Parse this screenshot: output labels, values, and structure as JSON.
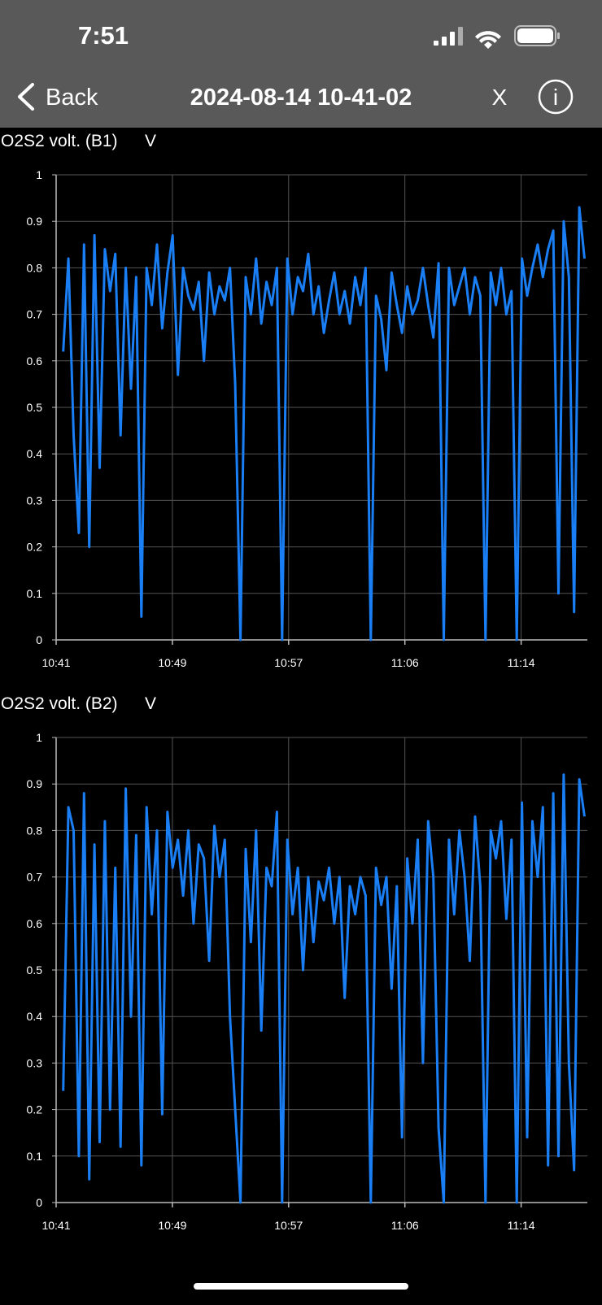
{
  "status_bar": {
    "time": "7:51"
  },
  "nav": {
    "back": "Back",
    "title": "2024-08-14 10-41-02",
    "close": "X",
    "info": "i"
  },
  "chart_data": [
    {
      "type": "line",
      "title": "O2S2 volt. (B1)",
      "unit": "V",
      "color": "#1a7ef5",
      "grid": true,
      "xlim": [
        641,
        678.7
      ],
      "ylim": [
        0,
        1
      ],
      "xticks": [
        {
          "value": 641,
          "label": "10:41"
        },
        {
          "value": 649.25,
          "label": "10:49"
        },
        {
          "value": 657.5,
          "label": "10:57"
        },
        {
          "value": 665.75,
          "label": "11:06"
        },
        {
          "value": 674,
          "label": "11:14"
        }
      ],
      "yticks": [
        0,
        0.1,
        0.2,
        0.3,
        0.4,
        0.5,
        0.6,
        0.7,
        0.8,
        0.9,
        1
      ],
      "x": [
        641.5,
        641.87,
        642.24,
        642.61,
        642.98,
        643.35,
        643.72,
        644.09,
        644.46,
        644.83,
        645.2,
        645.57,
        645.94,
        646.31,
        646.68,
        647.05,
        647.42,
        647.79,
        648.16,
        648.53,
        648.9,
        649.27,
        649.64,
        650.01,
        650.38,
        650.75,
        651.12,
        651.49,
        651.86,
        652.23,
        652.6,
        652.97,
        653.34,
        653.71,
        654.08,
        654.45,
        654.82,
        655.19,
        655.56,
        655.93,
        656.3,
        656.67,
        657.04,
        657.41,
        657.78,
        658.15,
        658.52,
        658.89,
        659.26,
        659.63,
        660,
        660.37,
        660.74,
        661.11,
        661.48,
        661.85,
        662.22,
        662.59,
        662.96,
        663.33,
        663.7,
        664.07,
        664.44,
        664.81,
        665.18,
        665.55,
        665.92,
        666.29,
        666.66,
        667.03,
        667.4,
        667.77,
        668.14,
        668.51,
        668.88,
        669.25,
        669.62,
        669.99,
        670.36,
        670.73,
        671.1,
        671.47,
        671.84,
        672.21,
        672.58,
        672.95,
        673.32,
        673.69,
        674.06,
        674.43,
        674.8,
        675.17,
        675.54,
        675.91,
        676.28,
        676.65,
        677.02,
        677.39,
        677.76,
        678.13,
        678.5
      ],
      "values": [
        0.62,
        0.82,
        0.44,
        0.23,
        0.85,
        0.2,
        0.87,
        0.37,
        0.84,
        0.75,
        0.83,
        0.44,
        0.8,
        0.54,
        0.78,
        0.05,
        0.8,
        0.72,
        0.85,
        0.67,
        0.79,
        0.87,
        0.57,
        0.8,
        0.74,
        0.71,
        0.77,
        0.6,
        0.79,
        0.7,
        0.76,
        0.73,
        0.8,
        0.55,
        0,
        0.78,
        0.7,
        0.82,
        0.68,
        0.77,
        0.72,
        0.8,
        0,
        0.82,
        0.7,
        0.78,
        0.75,
        0.83,
        0.7,
        0.76,
        0.66,
        0.73,
        0.79,
        0.7,
        0.75,
        0.68,
        0.78,
        0.72,
        0.8,
        0,
        0.74,
        0.69,
        0.58,
        0.79,
        0.72,
        0.66,
        0.76,
        0.7,
        0.73,
        0.8,
        0.72,
        0.65,
        0.81,
        0,
        0.8,
        0.72,
        0.76,
        0.8,
        0.7,
        0.78,
        0.74,
        0,
        0.79,
        0.72,
        0.8,
        0.7,
        0.75,
        0,
        0.82,
        0.74,
        0.8,
        0.85,
        0.78,
        0.84,
        0.88,
        0.1,
        0.9,
        0.78,
        0.06,
        0.93,
        0.82
      ]
    },
    {
      "type": "line",
      "title": "O2S2 volt. (B2)",
      "unit": "V",
      "color": "#1a7ef5",
      "grid": true,
      "xlim": [
        641,
        678.7
      ],
      "ylim": [
        0,
        1
      ],
      "xticks": [
        {
          "value": 641,
          "label": "10:41"
        },
        {
          "value": 649.25,
          "label": "10:49"
        },
        {
          "value": 657.5,
          "label": "10:57"
        },
        {
          "value": 665.75,
          "label": "11:06"
        },
        {
          "value": 674,
          "label": "11:14"
        }
      ],
      "yticks": [
        0,
        0.1,
        0.2,
        0.3,
        0.4,
        0.5,
        0.6,
        0.7,
        0.8,
        0.9,
        1
      ],
      "x": [
        641.5,
        641.87,
        642.24,
        642.61,
        642.98,
        643.35,
        643.72,
        644.09,
        644.46,
        644.83,
        645.2,
        645.57,
        645.94,
        646.31,
        646.68,
        647.05,
        647.42,
        647.79,
        648.16,
        648.53,
        648.9,
        649.27,
        649.64,
        650.01,
        650.38,
        650.75,
        651.12,
        651.49,
        651.86,
        652.23,
        652.6,
        652.97,
        653.34,
        653.71,
        654.08,
        654.45,
        654.82,
        655.19,
        655.56,
        655.93,
        656.3,
        656.67,
        657.04,
        657.41,
        657.78,
        658.15,
        658.52,
        658.89,
        659.26,
        659.63,
        660,
        660.37,
        660.74,
        661.11,
        661.48,
        661.85,
        662.22,
        662.59,
        662.96,
        663.33,
        663.7,
        664.07,
        664.44,
        664.81,
        665.18,
        665.55,
        665.92,
        666.29,
        666.66,
        667.03,
        667.4,
        667.77,
        668.14,
        668.51,
        668.88,
        669.25,
        669.62,
        669.99,
        670.36,
        670.73,
        671.1,
        671.47,
        671.84,
        672.21,
        672.58,
        672.95,
        673.32,
        673.69,
        674.06,
        674.43,
        674.8,
        675.17,
        675.54,
        675.91,
        676.28,
        676.65,
        677.02,
        677.39,
        677.76,
        678.13,
        678.5
      ],
      "values": [
        0.24,
        0.85,
        0.8,
        0.1,
        0.88,
        0.05,
        0.77,
        0.13,
        0.82,
        0.2,
        0.72,
        0.12,
        0.89,
        0.4,
        0.79,
        0.08,
        0.85,
        0.62,
        0.8,
        0.19,
        0.84,
        0.72,
        0.78,
        0.66,
        0.8,
        0.6,
        0.77,
        0.74,
        0.52,
        0.81,
        0.7,
        0.78,
        0.4,
        0.2,
        0,
        0.76,
        0.56,
        0.8,
        0.37,
        0.72,
        0.68,
        0.84,
        0,
        0.78,
        0.62,
        0.72,
        0.5,
        0.7,
        0.56,
        0.69,
        0.65,
        0.72,
        0.6,
        0.7,
        0.44,
        0.68,
        0.62,
        0.7,
        0.66,
        0,
        0.72,
        0.64,
        0.7,
        0.46,
        0.68,
        0.14,
        0.74,
        0.6,
        0.78,
        0.3,
        0.82,
        0.7,
        0.16,
        0,
        0.78,
        0.62,
        0.8,
        0.7,
        0.52,
        0.83,
        0.68,
        0,
        0.8,
        0.74,
        0.82,
        0.61,
        0.78,
        0,
        0.86,
        0.14,
        0.82,
        0.7,
        0.85,
        0.08,
        0.88,
        0.1,
        0.92,
        0.3,
        0.07,
        0.91,
        0.83
      ]
    }
  ]
}
